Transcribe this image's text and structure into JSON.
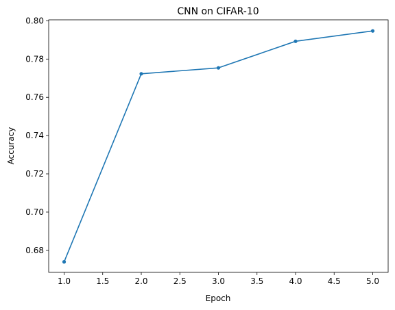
{
  "chart_data": {
    "type": "line",
    "title": "CNN on CIFAR-10",
    "xlabel": "Epoch",
    "ylabel": "Accuracy",
    "xlim": [
      0.8,
      5.2
    ],
    "ylim": [
      0.6685,
      0.8005
    ],
    "xticks": [
      1.0,
      1.5,
      2.0,
      2.5,
      3.0,
      3.5,
      4.0,
      4.5,
      5.0
    ],
    "xtick_labels": [
      "1.0",
      "1.5",
      "2.0",
      "2.5",
      "3.0",
      "3.5",
      "4.0",
      "4.5",
      "5.0"
    ],
    "yticks": [
      0.68,
      0.7,
      0.72,
      0.74,
      0.76,
      0.78,
      0.8
    ],
    "ytick_labels": [
      "0.68",
      "0.70",
      "0.72",
      "0.74",
      "0.76",
      "0.78",
      "0.80"
    ],
    "grid": false,
    "series": [
      {
        "x": [
          1,
          2,
          3,
          4,
          5
        ],
        "values": [
          0.674,
          0.7723,
          0.7754,
          0.7893,
          0.7947
        ],
        "color": "#1f77b4",
        "marker": "dot"
      }
    ]
  }
}
